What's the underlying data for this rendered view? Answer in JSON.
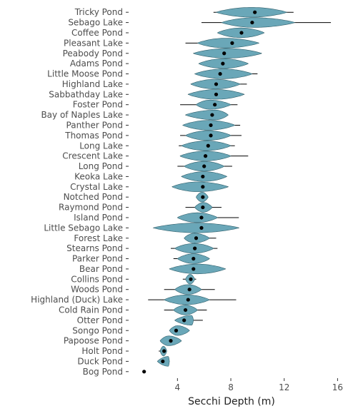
{
  "chart_data": {
    "type": "violin",
    "xlabel": "Secchi Depth (m)",
    "ylabel": "",
    "title": "",
    "xlim": [
      0.5,
      16.3
    ],
    "x_ticks": [
      4,
      8,
      12,
      16
    ],
    "x_tick_labels": [
      "4",
      "8",
      "12",
      "16"
    ],
    "grid": false,
    "legend": "none",
    "fill_color": "#6aa7b8",
    "outline_color": "#2f5f6b",
    "point_color": "#000000",
    "line_color": "#000000",
    "lakes": [
      {
        "name": "Tricky Pond",
        "mean": 9.8,
        "min": 6.7,
        "max": 12.7,
        "lo": 6.9,
        "hi": 12.2,
        "w": 0.95,
        "peak": 0.5
      },
      {
        "name": "Sebago Lake",
        "mean": 9.6,
        "min": 5.8,
        "max": 15.5,
        "lo": 7.3,
        "hi": 12.8,
        "w": 0.95,
        "peak": 0.45
      },
      {
        "name": "Coffee Pond",
        "mean": 8.8,
        "min": 7.0,
        "max": 10.5,
        "lo": 7.0,
        "hi": 10.5,
        "w": 0.95,
        "peak": 0.5
      },
      {
        "name": "Pleasant Lake",
        "mean": 8.1,
        "min": 4.6,
        "max": 10.1,
        "lo": 5.5,
        "hi": 10.1,
        "w": 0.95,
        "peak": 0.45
      },
      {
        "name": "Peabody Pond",
        "mean": 7.5,
        "min": 5.2,
        "max": 10.3,
        "lo": 5.2,
        "hi": 10.3,
        "w": 0.95,
        "peak": 0.5
      },
      {
        "name": "Adams Pond",
        "mean": 7.4,
        "min": 5.6,
        "max": 9.3,
        "lo": 5.6,
        "hi": 9.3,
        "w": 0.95,
        "peak": 0.5
      },
      {
        "name": "Little Moose Pond",
        "mean": 7.2,
        "min": 5.3,
        "max": 10.0,
        "lo": 5.3,
        "hi": 9.6,
        "w": 0.95,
        "peak": 0.5
      },
      {
        "name": "Highland Lake",
        "mean": 6.9,
        "min": 5.0,
        "max": 9.2,
        "lo": 5.0,
        "hi": 8.7,
        "w": 0.95,
        "peak": 0.5
      },
      {
        "name": "Sabbathday Lake",
        "mean": 6.9,
        "min": 4.8,
        "max": 9.0,
        "lo": 4.8,
        "hi": 9.0,
        "w": 0.95,
        "peak": 0.5
      },
      {
        "name": "Foster Pond",
        "mean": 6.8,
        "min": 4.2,
        "max": 8.5,
        "lo": 5.4,
        "hi": 8.0,
        "w": 0.9,
        "peak": 0.4
      },
      {
        "name": "Bay of Naples Lake",
        "mean": 6.6,
        "min": 4.6,
        "max": 7.8,
        "lo": 4.6,
        "hi": 7.8,
        "w": 0.95,
        "peak": 0.7
      },
      {
        "name": "Panther Pond",
        "mean": 6.5,
        "min": 4.4,
        "max": 8.7,
        "lo": 4.4,
        "hi": 8.3,
        "w": 0.95,
        "peak": 0.5
      },
      {
        "name": "Thomas Pond",
        "mean": 6.5,
        "min": 4.2,
        "max": 8.8,
        "lo": 4.6,
        "hi": 8.0,
        "w": 0.95,
        "peak": 0.5
      },
      {
        "name": "Long Lake",
        "mean": 6.3,
        "min": 4.1,
        "max": 8.3,
        "lo": 4.3,
        "hi": 8.0,
        "w": 0.95,
        "peak": 0.5
      },
      {
        "name": "Crescent Lake",
        "mean": 6.1,
        "min": 4.2,
        "max": 9.3,
        "lo": 4.2,
        "hi": 8.0,
        "w": 0.95,
        "peak": 0.5
      },
      {
        "name": "Long Pond",
        "mean": 6.0,
        "min": 4.0,
        "max": 8.1,
        "lo": 4.5,
        "hi": 7.5,
        "w": 0.95,
        "peak": 0.5
      },
      {
        "name": "Keoka Lake",
        "mean": 5.9,
        "min": 4.3,
        "max": 7.7,
        "lo": 4.3,
        "hi": 7.7,
        "w": 0.95,
        "peak": 0.5
      },
      {
        "name": "Crystal Lake",
        "mean": 5.9,
        "min": 3.6,
        "max": 7.8,
        "lo": 3.6,
        "hi": 7.8,
        "w": 0.95,
        "peak": 0.45
      },
      {
        "name": "Notched Pond",
        "mean": 5.9,
        "min": 5.4,
        "max": 6.3,
        "lo": 5.4,
        "hi": 6.3,
        "w": 0.95,
        "peak": 0.5
      },
      {
        "name": "Raymond Pond",
        "mean": 5.9,
        "min": 4.6,
        "max": 7.3,
        "lo": 5.3,
        "hi": 6.6,
        "w": 0.95,
        "peak": 0.5
      },
      {
        "name": "Island Pond",
        "mean": 5.8,
        "min": 4.0,
        "max": 8.6,
        "lo": 4.0,
        "hi": 7.0,
        "w": 0.95,
        "peak": 0.5
      },
      {
        "name": "Little Sebago Lake",
        "mean": 5.8,
        "min": 2.2,
        "max": 8.6,
        "lo": 2.2,
        "hi": 8.6,
        "w": 0.95,
        "peak": 0.5
      },
      {
        "name": "Forest Lake",
        "mean": 5.4,
        "min": 4.5,
        "max": 6.9,
        "lo": 4.5,
        "hi": 6.4,
        "w": 0.95,
        "peak": 0.4
      },
      {
        "name": "Stearns Pond",
        "mean": 5.3,
        "min": 3.5,
        "max": 7.0,
        "lo": 3.8,
        "hi": 6.7,
        "w": 0.95,
        "peak": 0.5
      },
      {
        "name": "Parker Pond",
        "mean": 5.2,
        "min": 3.7,
        "max": 6.4,
        "lo": 4.0,
        "hi": 6.4,
        "w": 0.95,
        "peak": 0.5
      },
      {
        "name": "Bear Pond",
        "mean": 5.2,
        "min": 3.4,
        "max": 7.6,
        "lo": 3.4,
        "hi": 7.6,
        "w": 0.95,
        "peak": 0.5
      },
      {
        "name": "Collins Pond",
        "mean": 5.0,
        "min": 4.4,
        "max": 5.4,
        "lo": 4.6,
        "hi": 5.3,
        "w": 0.95,
        "peak": 0.5
      },
      {
        "name": "Woods Pond",
        "mean": 4.9,
        "min": 3.0,
        "max": 6.8,
        "lo": 3.8,
        "hi": 5.8,
        "w": 0.95,
        "peak": 0.5
      },
      {
        "name": "Highland (Duck) Lake",
        "mean": 4.8,
        "min": 1.8,
        "max": 8.4,
        "lo": 3.0,
        "hi": 6.4,
        "w": 0.95,
        "peak": 0.5
      },
      {
        "name": "Cold Rain Pond",
        "mean": 4.6,
        "min": 3.0,
        "max": 6.2,
        "lo": 3.7,
        "hi": 5.5,
        "w": 0.95,
        "peak": 0.5
      },
      {
        "name": "Otter Pond",
        "mean": 4.5,
        "min": 3.8,
        "max": 5.9,
        "lo": 3.8,
        "hi": 5.2,
        "w": 0.95,
        "peak": 0.9
      },
      {
        "name": "Songo Pond",
        "mean": 3.9,
        "min": 3.4,
        "max": 4.9,
        "lo": 3.4,
        "hi": 4.9,
        "w": 0.95,
        "peak": 0.4
      },
      {
        "name": "Papoose Pond",
        "mean": 3.5,
        "min": 2.7,
        "max": 4.3,
        "lo": 2.7,
        "hi": 4.3,
        "w": 0.95,
        "peak": 0.4
      },
      {
        "name": "Holt Pond",
        "mean": 3.0,
        "min": 2.6,
        "max": 3.2,
        "lo": 2.7,
        "hi": 3.2,
        "w": 0.95,
        "peak": 0.5
      },
      {
        "name": "Duck Pond",
        "mean": 2.9,
        "min": 2.5,
        "max": 3.4,
        "lo": 2.5,
        "hi": 3.4,
        "w": 0.95,
        "peak": 0.9
      },
      {
        "name": "Bog Pond",
        "mean": 1.5,
        "min": 1.45,
        "max": 1.55,
        "lo": 1.45,
        "hi": 1.55,
        "w": 0.0,
        "peak": 0.5
      }
    ]
  }
}
